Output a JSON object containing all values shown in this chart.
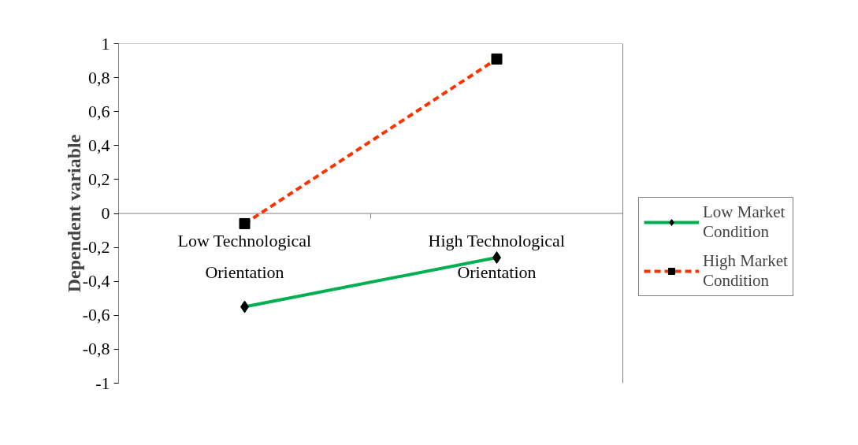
{
  "chart_data": {
    "type": "line",
    "ylabel": "Dependent variable",
    "categories": [
      "Low Technological Orientation",
      "High Technological Orientation"
    ],
    "series": [
      {
        "name": "Low Market Condition",
        "color": "#00b050",
        "values": [
          -0.55,
          -0.26
        ],
        "marker": "diamond",
        "line_style": "solid"
      },
      {
        "name": "High Market Condition",
        "color": "#ff3300",
        "values": [
          -0.06,
          0.91
        ],
        "marker": "square",
        "line_style": "dashed"
      }
    ],
    "ylim": [
      -1,
      1
    ],
    "yticks": [
      1,
      {
        "value": 0.8,
        "label": "0,8"
      },
      {
        "value": 0.6,
        "label": "0,6"
      },
      {
        "value": 0.4,
        "label": "0,4"
      },
      {
        "value": 0.2,
        "label": "0,2"
      },
      0,
      {
        "value": -0.2,
        "label": "-0,2"
      },
      {
        "value": -0.4,
        "label": "-0,4"
      },
      {
        "value": -0.6,
        "label": "-0,6"
      },
      {
        "value": -0.8,
        "label": "-0,8"
      },
      -1
    ],
    "grid": false,
    "legend": "right"
  }
}
